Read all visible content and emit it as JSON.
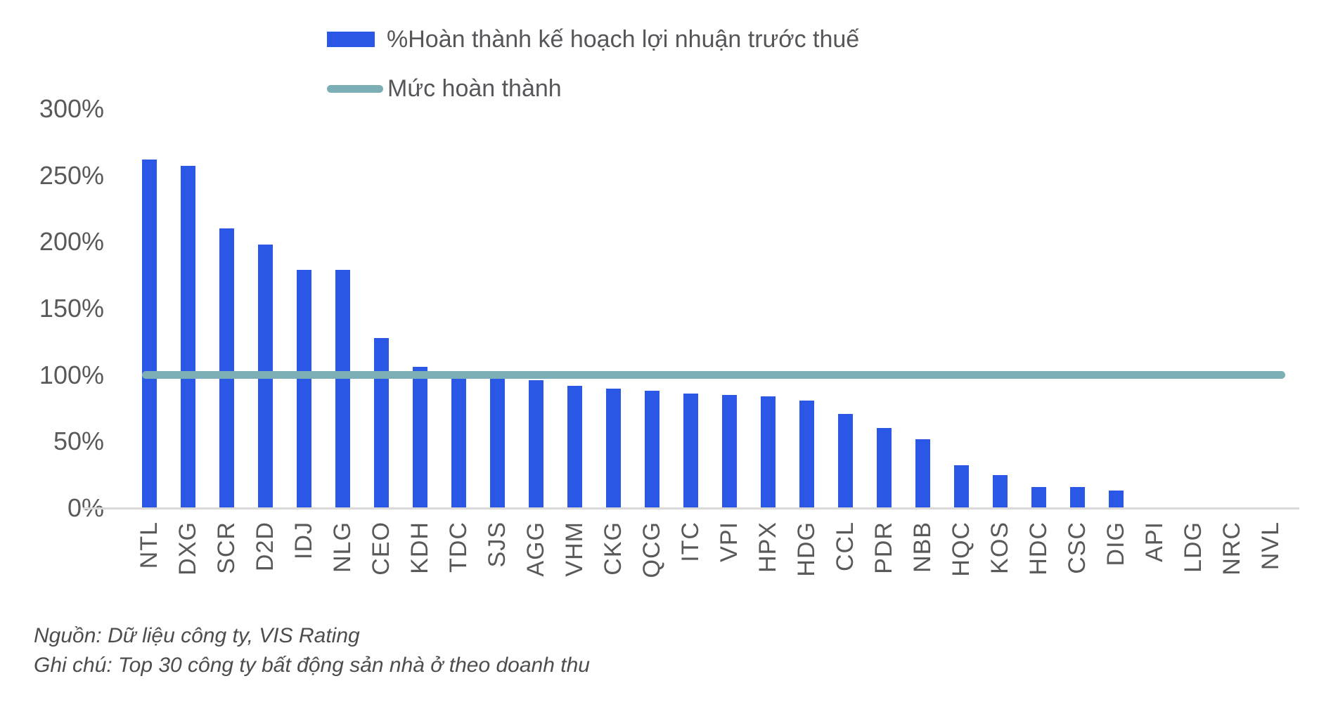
{
  "legend": {
    "bar_label": "%Hoàn thành kế hoạch lợi nhuận trước thuế",
    "line_label": "Mức hoàn thành"
  },
  "footer": {
    "source": "Nguồn: Dữ liệu công ty, VIS Rating",
    "note": "Ghi chú: Top 30 công ty bất động sản nhà ở theo doanh thu"
  },
  "colors": {
    "bar": "#2B57E6",
    "target_line": "#7BAEB5",
    "axis_line": "#D9D9D9",
    "tick_text": "#595959"
  },
  "chart_data": {
    "type": "bar",
    "title": "",
    "categories": [
      "NTL",
      "DXG",
      "SCR",
      "D2D",
      "IDJ",
      "NLG",
      "CEO",
      "KDH",
      "TDC",
      "SJS",
      "AGG",
      "VHM",
      "CKG",
      "QCG",
      "ITC",
      "VPI",
      "HPX",
      "HDG",
      "CCL",
      "PDR",
      "NBB",
      "HQC",
      "KOS",
      "HDC",
      "CSC",
      "DIG",
      "API",
      "LDG",
      "NRC",
      "NVL"
    ],
    "values": [
      262,
      257,
      210,
      198,
      179,
      179,
      128,
      106,
      103,
      97,
      96,
      92,
      90,
      88,
      86,
      85,
      84,
      81,
      71,
      60,
      52,
      32,
      25,
      16,
      16,
      13,
      0,
      0,
      0,
      0
    ],
    "series_name": "%Hoàn thành kế hoạch lợi nhuận trước thuế",
    "target_line": {
      "label": "Mức hoàn thành",
      "value": 100
    },
    "ylabel": "",
    "xlabel": "",
    "ylim": [
      0,
      300
    ],
    "ytick_labels": [
      "0%",
      "50%",
      "100%",
      "150%",
      "200%",
      "250%",
      "300%"
    ],
    "ytick_values": [
      0,
      50,
      100,
      150,
      200,
      250,
      300
    ],
    "grid": false,
    "legend_position": "top"
  }
}
